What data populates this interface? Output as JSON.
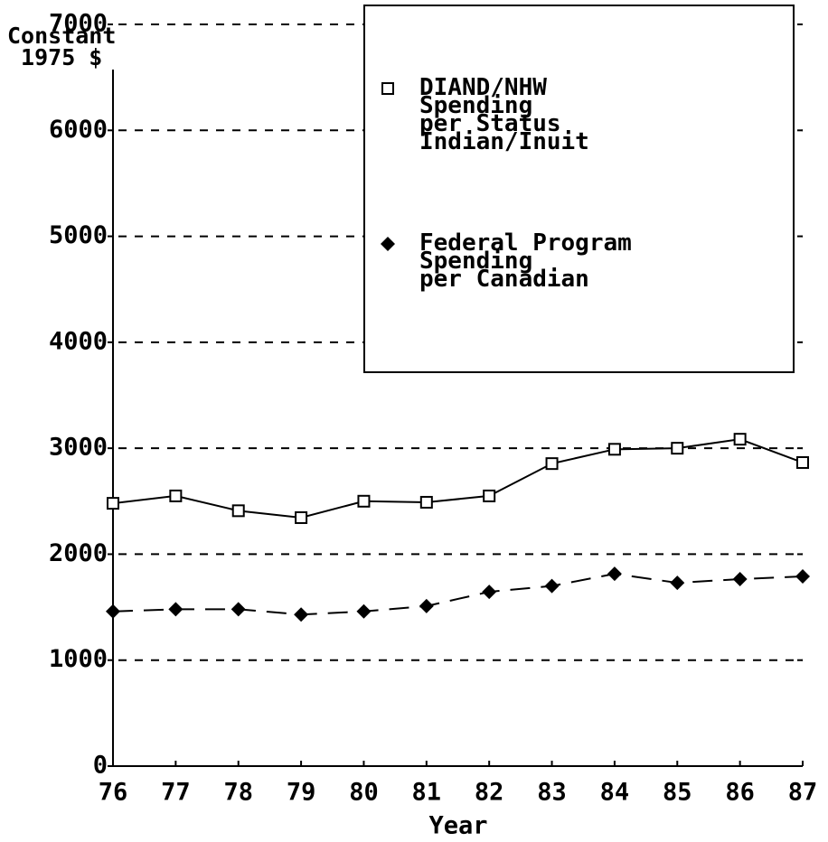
{
  "chart_data": {
    "type": "line",
    "y_axis_label": "Constant\n1975 $",
    "x_axis_label": "Year",
    "categories": [
      "76",
      "77",
      "78",
      "79",
      "80",
      "81",
      "82",
      "83",
      "84",
      "85",
      "86",
      "87"
    ],
    "series": [
      {
        "name": "DIAND/NHW\nSpending\nper Status\nIndian/Inuit",
        "color": "#000000",
        "marker": "square",
        "dash": "solid",
        "values": [
          2480,
          2550,
          2410,
          2345,
          2500,
          2490,
          2550,
          2855,
          2990,
          3000,
          3085,
          2865
        ]
      },
      {
        "name": "Federal Program\nSpending\nper Canadian",
        "color": "#000000",
        "marker": "diamond",
        "dash": "dashed",
        "values": [
          1460,
          1480,
          1480,
          1430,
          1460,
          1510,
          1645,
          1700,
          1815,
          1730,
          1765,
          1790
        ]
      }
    ],
    "ylim": [
      0,
      7000
    ],
    "yticks": [
      0,
      1000,
      2000,
      3000,
      4000,
      5000,
      6000,
      7000
    ],
    "grid": true
  }
}
